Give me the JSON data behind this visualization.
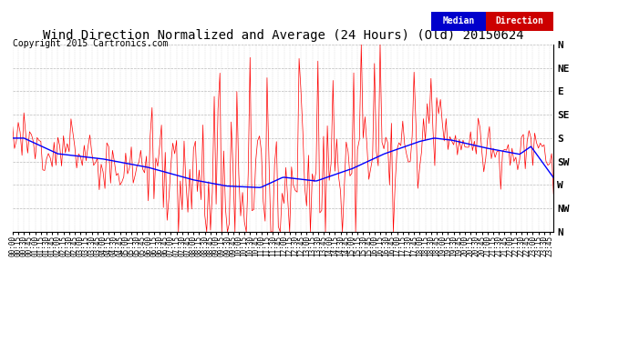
{
  "title": "Wind Direction Normalized and Average (24 Hours) (Old) 20150624",
  "copyright": "Copyright 2015 Cartronics.com",
  "y_labels": [
    "N",
    "NW",
    "W",
    "SW",
    "S",
    "SE",
    "E",
    "NE",
    "N"
  ],
  "y_values": [
    360,
    315,
    270,
    225,
    180,
    135,
    90,
    45,
    0
  ],
  "y_min": 0,
  "y_max": 360,
  "line_red_color": "#ff0000",
  "line_blue_color": "#0000ff",
  "background_color": "#ffffff",
  "grid_color": "#aaaaaa",
  "title_fontsize": 10,
  "copyright_fontsize": 7,
  "legend_median_bg": "#0000cc",
  "legend_direction_bg": "#cc0000"
}
